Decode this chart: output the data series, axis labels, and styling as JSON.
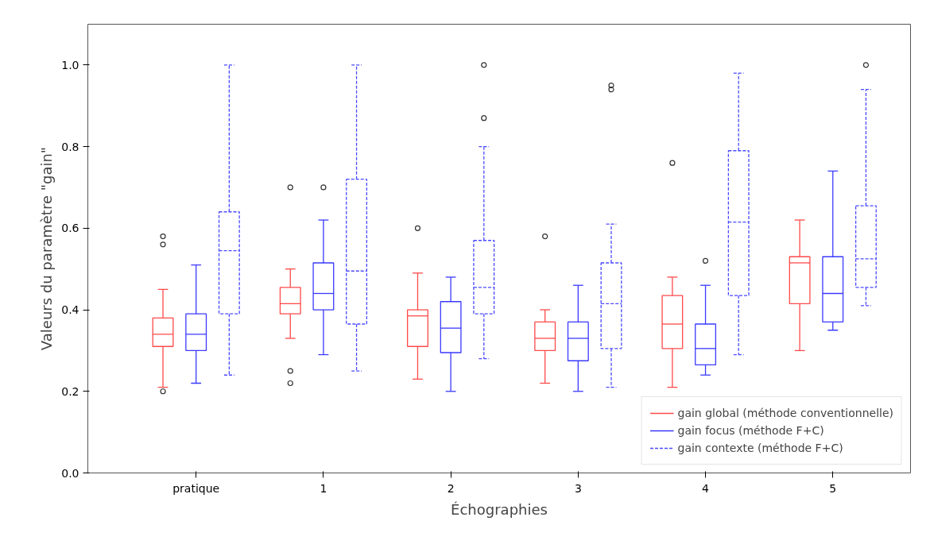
{
  "chart_data": {
    "type": "box",
    "xlabel": "Échographies",
    "ylabel": "Valeurs du paramètre \"gain\"",
    "categories": [
      "pratique",
      "1",
      "2",
      "3",
      "4",
      "5"
    ],
    "ylim": [
      0,
      1.1
    ],
    "yticks": [
      {
        "value": 0,
        "label": "0.0"
      },
      {
        "value": 0.2,
        "label": "0.2"
      },
      {
        "value": 0.4,
        "label": "0.4"
      },
      {
        "value": 0.6,
        "label": "0.6"
      },
      {
        "value": 0.8,
        "label": "0.8"
      },
      {
        "value": 1.0,
        "label": "1.0"
      }
    ],
    "grid": false,
    "legend": "bottom right",
    "series": [
      {
        "name": "gain global (méthode conventionnelle)",
        "color": "#ff4a4a",
        "line_style": "solid",
        "boxes": [
          {
            "low": 0.21,
            "q1": 0.31,
            "median": 0.34,
            "q3": 0.38,
            "high": 0.45,
            "outliers": [
              0.2,
              0.56,
              0.58
            ]
          },
          {
            "low": 0.33,
            "q1": 0.39,
            "median": 0.415,
            "q3": 0.455,
            "high": 0.5,
            "outliers": [
              0.22,
              0.25,
              0.7
            ]
          },
          {
            "low": 0.23,
            "q1": 0.31,
            "median": 0.385,
            "q3": 0.4,
            "high": 0.49,
            "outliers": [
              0.6
            ]
          },
          {
            "low": 0.22,
            "q1": 0.3,
            "median": 0.33,
            "q3": 0.37,
            "high": 0.4,
            "outliers": [
              0.58
            ]
          },
          {
            "low": 0.21,
            "q1": 0.305,
            "median": 0.365,
            "q3": 0.435,
            "high": 0.48,
            "outliers": [
              0.76
            ]
          },
          {
            "low": 0.3,
            "q1": 0.415,
            "median": 0.515,
            "q3": 0.53,
            "high": 0.62
          }
        ]
      },
      {
        "name": "gain focus (méthode F+C)",
        "color": "#3a3aff",
        "line_style": "solid",
        "boxes": [
          {
            "low": 0.22,
            "q1": 0.3,
            "median": 0.34,
            "q3": 0.39,
            "high": 0.51
          },
          {
            "low": 0.29,
            "q1": 0.4,
            "median": 0.44,
            "q3": 0.515,
            "high": 0.62,
            "outliers": [
              0.7
            ]
          },
          {
            "low": 0.2,
            "q1": 0.295,
            "median": 0.355,
            "q3": 0.42,
            "high": 0.48
          },
          {
            "low": 0.2,
            "q1": 0.275,
            "median": 0.33,
            "q3": 0.37,
            "high": 0.46
          },
          {
            "low": 0.24,
            "q1": 0.265,
            "median": 0.305,
            "q3": 0.365,
            "high": 0.46,
            "outliers": [
              0.52
            ]
          },
          {
            "low": 0.35,
            "q1": 0.37,
            "median": 0.44,
            "q3": 0.53,
            "high": 0.74
          }
        ]
      },
      {
        "name": "gain contexte (méthode F+C)",
        "color": "#4a4aff",
        "line_style": "dashed",
        "boxes": [
          {
            "low": 0.24,
            "q1": 0.39,
            "median": 0.545,
            "q3": 0.64,
            "high": 1.0
          },
          {
            "low": 0.25,
            "q1": 0.365,
            "median": 0.495,
            "q3": 0.72,
            "high": 1.0
          },
          {
            "low": 0.28,
            "q1": 0.39,
            "median": 0.455,
            "q3": 0.57,
            "high": 0.8,
            "outliers": [
              0.87,
              1.0
            ]
          },
          {
            "low": 0.21,
            "q1": 0.305,
            "median": 0.415,
            "q3": 0.515,
            "high": 0.61,
            "outliers": [
              0.94,
              0.95
            ]
          },
          {
            "low": 0.29,
            "q1": 0.435,
            "median": 0.615,
            "q3": 0.79,
            "high": 0.98
          },
          {
            "low": 0.41,
            "q1": 0.455,
            "median": 0.525,
            "q3": 0.655,
            "high": 0.94,
            "outliers": [
              1.0
            ]
          }
        ]
      }
    ]
  }
}
